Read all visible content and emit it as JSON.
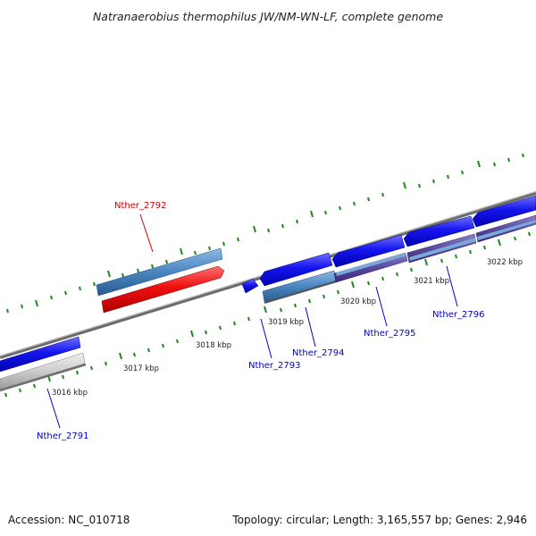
{
  "title": "Natranaerobius thermophilus JW/NM-WN-LF, complete genome",
  "footer": {
    "accession": "Accession: NC_010718",
    "stats": "Topology: circular; Length: 3,165,557 bp; Genes: 2,946"
  },
  "ticks": [
    "3016 kbp",
    "3017 kbp",
    "3018 kbp",
    "3019 kbp",
    "3020 kbp",
    "3021 kbp",
    "3022 kbp"
  ],
  "genes": [
    {
      "label": "Nther_2791",
      "color": "#0000cc"
    },
    {
      "label": "Nther_2792",
      "color": "#cc0000"
    },
    {
      "label": "Nther_2793",
      "color": "#0000cc"
    },
    {
      "label": "Nther_2794",
      "color": "#0000cc"
    },
    {
      "label": "Nther_2795",
      "color": "#0000cc"
    },
    {
      "label": "Nther_2796",
      "color": "#0000cc"
    }
  ],
  "colors": {
    "cds_forward": "#1a1aee",
    "cds_reverse": "#ee1a1a",
    "gene_feature": "#4a86c0",
    "rna_feature": "#5a4aa0",
    "pseudo_feature": "#c8c8c8",
    "backbone": "#808080",
    "tick_marks": "#1a8a1a"
  }
}
